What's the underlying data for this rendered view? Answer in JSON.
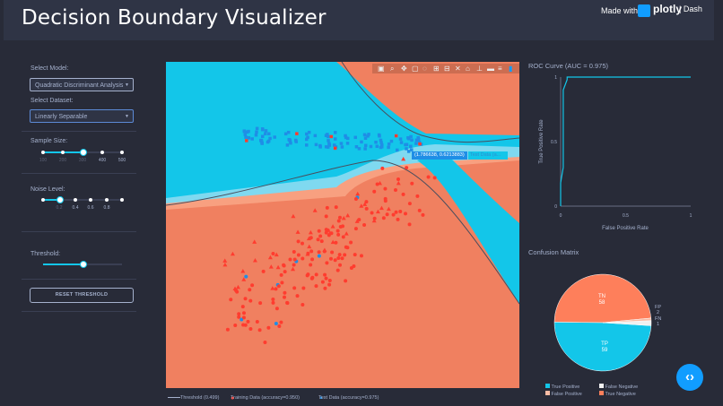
{
  "header": {
    "title": "Decision Boundary Visualizer",
    "made_with": "Made with",
    "brand": "plotly",
    "product": "| Dash"
  },
  "controls": {
    "model_label": "Select Model:",
    "model_value": "Quadratic Discriminant Analysis",
    "dataset_label": "Select Dataset:",
    "dataset_value": "Linearly Separable",
    "sample_label": "Sample Size:",
    "sample_marks": [
      "100",
      "200",
      "300",
      "400",
      "500"
    ],
    "sample_value": "300",
    "noise_label": "Noise Level:",
    "noise_marks": [
      "0.2",
      "0.4",
      "0.6",
      "0.8"
    ],
    "noise_value": "0.2",
    "threshold_label": "Threshold:",
    "threshold_value": 0.499,
    "reset_label": "RESET THRESHOLD"
  },
  "main_plot": {
    "hover_coord": "(1.786638, 0.6213883)",
    "hover_series": "Test Data (a...",
    "legend": [
      "Threshold (0.499)",
      "Training Data (accuracy=0.950)",
      "Test Data (accuracy=0.975)"
    ],
    "colors": {
      "red": "#ff3c2f",
      "blue": "#1f8ee6",
      "cyan": "#13c6e9",
      "coral": "#f08060",
      "line": "#494e5e"
    }
  },
  "roc": {
    "title": "ROC Curve (AUC = 0.975)",
    "xlabel": "False Positive Rate",
    "ylabel": "True Positive Rate",
    "xticks": [
      "0",
      "0.5",
      "1"
    ],
    "yticks": [
      "0",
      "0.5",
      "1"
    ]
  },
  "confusion": {
    "title": "Confusion Matrix",
    "slices": [
      {
        "label": "TN",
        "value": "58"
      },
      {
        "label": "TP",
        "value": "59"
      },
      {
        "label": "FP",
        "value": "2"
      },
      {
        "label": "FN",
        "value": "1"
      }
    ],
    "legend": [
      "True Positive",
      "False Negative",
      "False Positive",
      "True Negative"
    ]
  },
  "chart_data": [
    {
      "type": "line",
      "title": "ROC Curve (AUC = 0.975)",
      "xlabel": "False Positive Rate",
      "ylabel": "True Positive Rate",
      "xlim": [
        0,
        1
      ],
      "ylim": [
        0,
        1
      ],
      "x": [
        0,
        0,
        0.02,
        0.02,
        0.05,
        0.05,
        0.6,
        0.6,
        1
      ],
      "y": [
        0,
        0.18,
        0.3,
        0.9,
        0.98,
        1,
        1,
        1,
        1
      ]
    },
    {
      "type": "pie",
      "title": "Confusion Matrix",
      "labels": [
        "TN",
        "TP",
        "FP",
        "FN"
      ],
      "values": [
        58,
        59,
        2,
        1
      ]
    }
  ]
}
